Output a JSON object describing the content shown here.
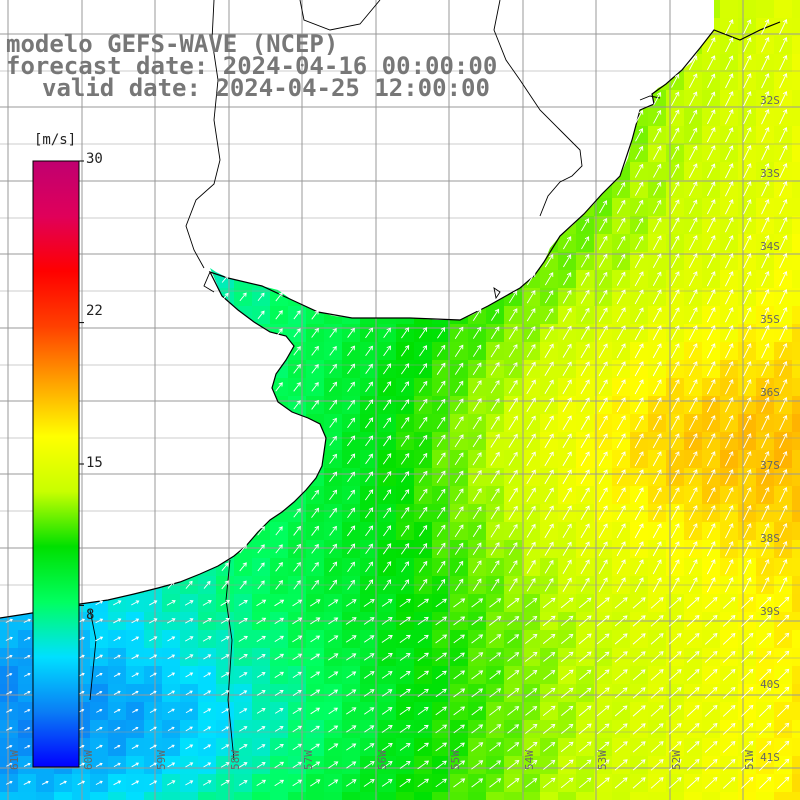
{
  "titles": {
    "model": "modelo GEFS-WAVE (NCEP)",
    "forecast": "forecast date: 2024-04-16 00:00:00",
    "valid": "valid date: 2024-04-25 12:00:00"
  },
  "colorbar": {
    "unit": "[m/s]",
    "ticks": [
      "30",
      "22",
      "15",
      "8"
    ],
    "tick_values": [
      30,
      22,
      15,
      8
    ],
    "range": [
      0,
      30
    ],
    "colors": [
      "#0000ff",
      "#0a7df5",
      "#00e0ff",
      "#00ff60",
      "#00e000",
      "#c8ff00",
      "#ffff00",
      "#ffa000",
      "#ff4000",
      "#ff0000",
      "#e0005a",
      "#c00070"
    ]
  },
  "map": {
    "lat_labels": [
      "32S",
      "33S",
      "34S",
      "35S",
      "36S",
      "37S",
      "38S",
      "39S",
      "40S",
      "41S"
    ],
    "lon_labels": [
      "61W",
      "60W",
      "59W",
      "58W",
      "57W",
      "56W",
      "55W",
      "54W",
      "53W",
      "52W",
      "51W"
    ],
    "colors": {
      "land": "#ffffff",
      "coast": "#000000",
      "grid": "#999999",
      "arrows": "#ffffff",
      "labels": "#666666"
    },
    "field": "wind speed [m/s] with direction arrows"
  }
}
